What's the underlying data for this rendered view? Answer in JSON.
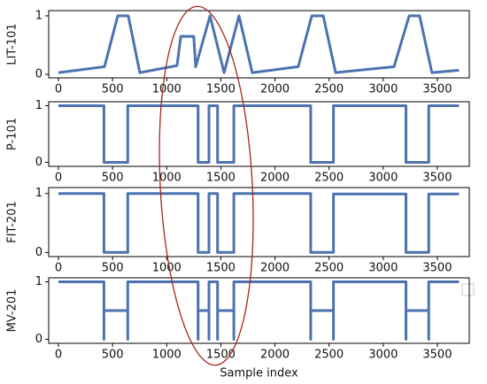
{
  "chart_data": [
    {
      "type": "line",
      "ylabel": "LIT-101",
      "color": "#4c72b0",
      "x": [
        0,
        425,
        548,
        645,
        752,
        1095,
        1130,
        1250,
        1268,
        1400,
        1530,
        1668,
        1790,
        2215,
        2340,
        2446,
        2560,
        3100,
        3240,
        3336,
        3450,
        3700
      ],
      "values": [
        0.03,
        0.13,
        1,
        1,
        0.03,
        0.15,
        0.65,
        0.65,
        0.13,
        1,
        0.03,
        1,
        0.03,
        0.13,
        1,
        1,
        0.03,
        0.13,
        1,
        1,
        0.03,
        0.07
      ],
      "xlim": [
        -90,
        3795
      ],
      "ylim": [
        -0.06,
        1.09
      ],
      "xticks": [
        0,
        500,
        1000,
        1500,
        2000,
        2500,
        3000,
        3500
      ],
      "yticks": [
        0,
        1
      ]
    },
    {
      "type": "line",
      "ylabel": "P-101",
      "color": "#4c72b0",
      "x": [
        0,
        420,
        420,
        640,
        640,
        1290,
        1290,
        1390,
        1390,
        1470,
        1470,
        1620,
        1620,
        2330,
        2330,
        2540,
        2540,
        3210,
        3210,
        3420,
        3420,
        3700
      ],
      "values": [
        1,
        1,
        0,
        0,
        1,
        1,
        0,
        0,
        1,
        1,
        0,
        0,
        1,
        1,
        0,
        0,
        1,
        1,
        0,
        0,
        1,
        1
      ],
      "xlim": [
        -90,
        3795
      ],
      "ylim": [
        -0.07,
        1.07
      ],
      "xticks": [
        0,
        500,
        1000,
        1500,
        2000,
        2500,
        3000,
        3500
      ],
      "yticks": [
        0,
        1
      ]
    },
    {
      "type": "line",
      "ylabel": "FIT-201",
      "color": "#4c72b0",
      "x": [
        0,
        420,
        420,
        640,
        640,
        1290,
        1290,
        1390,
        1390,
        1470,
        1470,
        1620,
        1620,
        2330,
        2330,
        2540,
        2540,
        3210,
        3210,
        3420,
        3420,
        3700
      ],
      "values": [
        1,
        1,
        0,
        0,
        1,
        1,
        0,
        0,
        1,
        1,
        0,
        0,
        1,
        1,
        0,
        0,
        0.99,
        0.99,
        0,
        0,
        0.99,
        0.99
      ],
      "xlim": [
        -90,
        3795
      ],
      "ylim": [
        -0.07,
        1.1
      ],
      "xticks": [
        0,
        500,
        1000,
        1500,
        2000,
        2500,
        3000,
        3500
      ],
      "yticks": [
        0,
        1
      ]
    },
    {
      "type": "line",
      "ylabel": "MV-201",
      "xlabel": "Sample index",
      "color": "#4c72b0",
      "x": [
        0,
        420,
        420,
        420,
        640,
        640,
        640,
        1290,
        1290,
        1290,
        1390,
        1390,
        1390,
        1470,
        1470,
        1470,
        1620,
        1620,
        1620,
        2330,
        2330,
        2330,
        2540,
        2540,
        2540,
        3210,
        3210,
        3210,
        3420,
        3420,
        3420,
        3700
      ],
      "values": [
        1,
        1,
        0,
        0.5,
        0.5,
        0,
        1,
        1,
        0,
        0.5,
        0.5,
        0,
        1,
        1,
        0,
        0.5,
        0.5,
        0,
        1,
        1,
        0,
        0.5,
        0.5,
        0,
        1,
        1,
        0,
        0.5,
        0.5,
        0,
        1,
        1
      ],
      "xlim": [
        -90,
        3795
      ],
      "ylim": [
        -0.07,
        1.07
      ],
      "xticks": [
        0,
        500,
        1000,
        1500,
        2000,
        2500,
        3000,
        3500
      ],
      "yticks": [
        0,
        1
      ]
    }
  ]
}
